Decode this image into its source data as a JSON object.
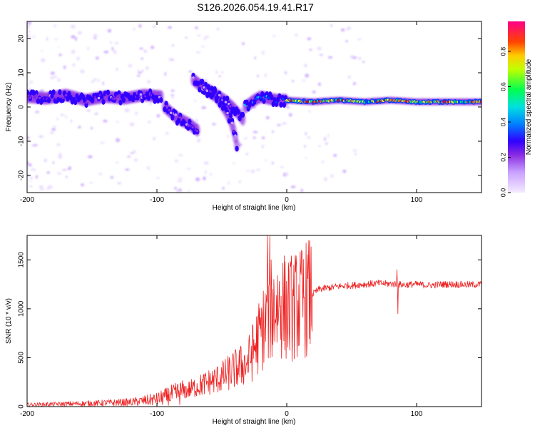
{
  "title": "S126.2026.054.19.41.R17",
  "chart_data": [
    {
      "type": "heatmap",
      "name": "spectrogram",
      "xlabel": "Height of straight line (km)",
      "ylabel": "Frequency (Hz)",
      "xlim": [
        -200,
        150
      ],
      "ylim": [
        -25,
        25
      ],
      "xticks": [
        -200,
        -100,
        0,
        100
      ],
      "yticks": [
        20,
        10,
        0,
        -10,
        -20
      ],
      "colorbar": {
        "label": "Normalized spectral amplitude",
        "range": [
          0.0,
          0.97
        ],
        "ticks": [
          "0.0",
          "0.2",
          "0.4",
          "0.6",
          "0.8"
        ],
        "tick_values": [
          0.0,
          0.2,
          0.4,
          0.6,
          0.8
        ],
        "colors": [
          "#f0e6ff",
          "#c8a0ff",
          "#8a2be2",
          "#3000ff",
          "#0040ff",
          "#00ccff",
          "#00ff60",
          "#ffff00",
          "#ff8000",
          "#ff0000",
          "#ff0088"
        ]
      },
      "tracks": [
        {
          "x": [
            -200,
            -185,
            -170,
            -155,
            -140,
            -125,
            -110,
            -96
          ],
          "y": [
            3,
            2.5,
            3.5,
            2,
            3,
            2.5,
            3.5,
            3
          ],
          "amplitude": 0.22
        },
        {
          "x": [
            -94,
            -85,
            -75,
            -68
          ],
          "y": [
            0,
            -3,
            -5,
            -7
          ],
          "amplitude": 0.2
        },
        {
          "x": [
            -72,
            -62,
            -54,
            -47,
            -43,
            -40,
            -38
          ],
          "y": [
            8,
            5,
            3,
            -1,
            -4,
            -8,
            -12
          ],
          "amplitude": 0.18
        },
        {
          "x": [
            -65,
            -56,
            -48,
            -42,
            -37,
            -33
          ],
          "y": [
            6,
            4,
            2,
            0,
            -2,
            -4
          ],
          "amplitude": 0.2
        },
        {
          "x": [
            -32,
            -25,
            -20,
            -14,
            -8,
            0
          ],
          "y": [
            0,
            2,
            3,
            2.5,
            2,
            2
          ],
          "amplitude": 0.45
        },
        {
          "x": [
            0,
            20,
            40,
            60,
            80,
            100,
            120,
            150
          ],
          "y": [
            2,
            1.5,
            2,
            1.5,
            2,
            1.5,
            1.5,
            1.5
          ],
          "amplitude": 0.8
        }
      ]
    },
    {
      "type": "line",
      "name": "snr",
      "xlabel": "Height of straight line (km)",
      "ylabel": "SNR (10 * v/v)",
      "xlim": [
        -200,
        150
      ],
      "ylim": [
        0,
        1750
      ],
      "xticks": [
        -200,
        -100,
        0,
        100
      ],
      "yticks": [
        0,
        500,
        1000,
        1500
      ],
      "color": "#ee2222",
      "envelope": {
        "x": [
          -200,
          -160,
          -120,
          -100,
          -80,
          -70,
          -60,
          -50,
          -40,
          -30,
          -25,
          -20,
          -15,
          -12,
          -10,
          -5,
          0,
          5,
          10,
          15,
          20,
          25,
          30,
          40,
          50,
          60,
          70,
          80,
          85,
          90,
          100,
          110,
          120,
          130,
          140,
          150
        ],
        "y": [
          20,
          30,
          45,
          75,
          150,
          200,
          250,
          300,
          380,
          450,
          600,
          750,
          900,
          1000,
          1020,
          1050,
          1000,
          1020,
          1050,
          1100,
          1150,
          1200,
          1210,
          1230,
          1240,
          1250,
          1260,
          1255,
          1250,
          1245,
          1250,
          1240,
          1250,
          1250,
          1245,
          1250
        ]
      },
      "spikes": [
        {
          "x": -15,
          "y": 1750
        },
        {
          "x": -13,
          "y": 1740
        },
        {
          "x": 85,
          "y": 1400
        },
        {
          "x": 85.5,
          "y": 950
        }
      ]
    }
  ]
}
